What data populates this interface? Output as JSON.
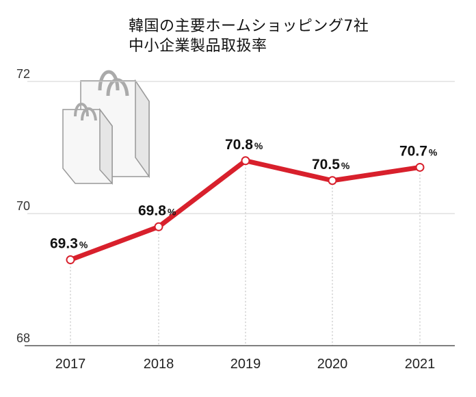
{
  "chart_data": {
    "type": "line",
    "title_lines": [
      "韓国の主要ホームショッピング7社",
      "中小企業製品取扱率"
    ],
    "categories": [
      "2017",
      "2018",
      "2019",
      "2020",
      "2021"
    ],
    "values": [
      69.3,
      69.8,
      70.8,
      70.5,
      70.7
    ],
    "value_labels": [
      "69.3",
      "69.8",
      "70.8",
      "70.5",
      "70.7"
    ],
    "unit": "%",
    "yticks": [
      "72",
      "70",
      "68"
    ],
    "ylim": [
      68,
      72
    ],
    "grid": true,
    "colors": {
      "line": "#d8202c",
      "marker_fill": "#ffffff",
      "grid": "#d0d0d0"
    }
  },
  "illustration": {
    "icon": "shopping-bags-icon"
  }
}
